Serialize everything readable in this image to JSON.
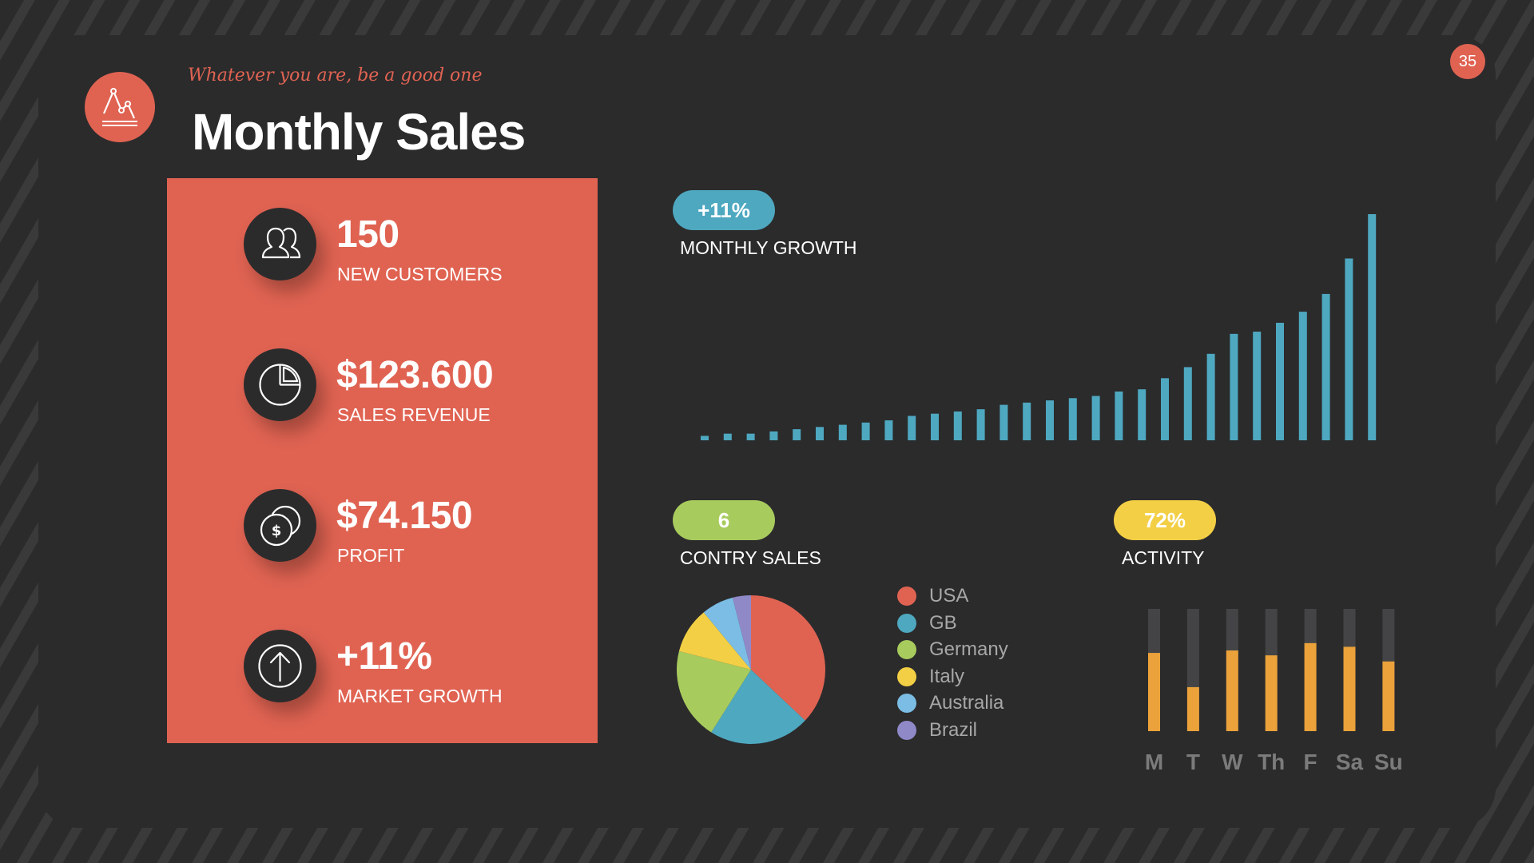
{
  "header": {
    "tagline": "Whatever you are, be a good one",
    "title": "Monthly Sales",
    "page_number": "35",
    "logo_icon": "line-chart-icon"
  },
  "colors": {
    "background": "#2b2b2c",
    "accent_red": "#e06352",
    "blue": "#4ea8c0",
    "green": "#a8cb5d",
    "yellow": "#f3cf45",
    "orange": "#eba23a",
    "dark_bar": "#444446"
  },
  "stats": [
    {
      "icon": "users-icon",
      "value": "150",
      "label": "NEW CUSTOMERS"
    },
    {
      "icon": "pie-chart-icon",
      "value": "$123.600",
      "label": "SALES REVENUE"
    },
    {
      "icon": "coins-icon",
      "value": "$74.150",
      "label": "PROFIT"
    },
    {
      "icon": "arrow-up-circle-icon",
      "value": "+11%",
      "label": "MARKET GROWTH"
    }
  ],
  "growth": {
    "badge": "+11%",
    "label": "MONTHLY GROWTH"
  },
  "country": {
    "badge": "6",
    "label": "CONTRY SALES"
  },
  "activity": {
    "badge": "72%",
    "label": "ACTIVITY"
  },
  "chart_data": [
    {
      "type": "bar",
      "name": "monthly-growth",
      "values": [
        1,
        1.5,
        1.5,
        2,
        2.5,
        3,
        3.5,
        4,
        4.5,
        5.5,
        6,
        6.5,
        7,
        8,
        8.5,
        9,
        9.5,
        10,
        11,
        11.5,
        14,
        16.5,
        19.5,
        24,
        24.5,
        26.5,
        29,
        33,
        41,
        51
      ],
      "ylim": [
        0,
        51
      ],
      "color": "#4ea8c0"
    },
    {
      "type": "pie",
      "name": "country-sales",
      "categories": [
        "USA",
        "GB",
        "Germany",
        "Italy",
        "Australia",
        "Brazil"
      ],
      "values": [
        37,
        22,
        20,
        10,
        7,
        4
      ],
      "colors": [
        "#e06352",
        "#4ea8c0",
        "#a8cb5d",
        "#f3cf45",
        "#7bbde4",
        "#9089c8"
      ]
    },
    {
      "type": "bar",
      "name": "activity",
      "categories": [
        "M",
        "T",
        "W",
        "Th",
        "F",
        "Sa",
        "Su"
      ],
      "values": [
        64,
        36,
        66,
        62,
        72,
        69,
        57
      ],
      "ylim": [
        0,
        100
      ],
      "color": "#eba23a",
      "track_color": "#444446"
    }
  ]
}
